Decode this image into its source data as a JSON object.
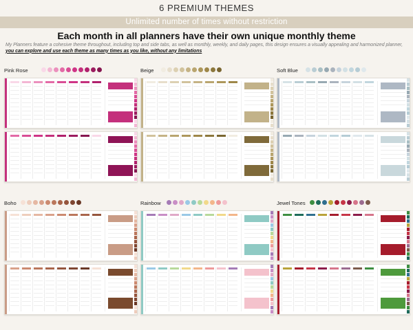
{
  "header": {
    "title": "6 PREMIUM THEMES",
    "banner": "Unlimited number of times without restriction",
    "heading": "Each month in all planners have their own unique monthly theme",
    "description": "My Planners feature a cohesive theme throughout, including top and side tabs, as well as monthly, weekly, and daily pages, this design ensures a visually appealing and harmonized planner,",
    "description_strong": "you can explore and use each theme as many times as you like, without any limitations"
  },
  "themes": [
    {
      "name": "Pink Rose",
      "accent": "#c4307c",
      "dark": "#8f1456",
      "swatches": [
        "#f9d8e8",
        "#f3b6d3",
        "#eb90bd",
        "#e36aa6",
        "#d94d95",
        "#cf3486",
        "#c4307c",
        "#b0206c",
        "#9c1c5f",
        "#861650"
      ]
    },
    {
      "name": "Beige",
      "accent": "#c2b289",
      "dark": "#7f6a3a",
      "swatches": [
        "#f1ece1",
        "#e7decb",
        "#dcd0b2",
        "#d1c29c",
        "#c5b385",
        "#b9a56f",
        "#ad975b",
        "#9e8749",
        "#8c773c",
        "#7a6631"
      ]
    },
    {
      "name": "Soft Blue",
      "accent": "#aeb8c4",
      "dark": "#c9d8dc",
      "swatches": [
        "#d6e2e6",
        "#b9cdd4",
        "#a9bfc4",
        "#97a9b2",
        "#aab3bd",
        "#c6d3dc",
        "#d2e0e4",
        "#c1d6de",
        "#b5ccd5",
        "#dfe8ec"
      ]
    },
    {
      "name": "Boho",
      "accent": "#c99c86",
      "dark": "#7a4a2e",
      "swatches": [
        "#f6e1d6",
        "#eecdbc",
        "#e5b8a3",
        "#d9a18a",
        "#cc8a70",
        "#bb775c",
        "#a9654b",
        "#95553d",
        "#7f4631",
        "#6a3826"
      ]
    },
    {
      "name": "Rainbow",
      "accent": "#8fcac4",
      "dark": "#f4c2cc",
      "swatches": [
        "#a57bb6",
        "#c98fc6",
        "#e0a9c8",
        "#9ac9e6",
        "#8fcac4",
        "#b8d99a",
        "#f1d98a",
        "#f3b68a",
        "#ee9a9a",
        "#f4c2cc"
      ]
    },
    {
      "name": "Jewel Tones",
      "accent": "#a51c2c",
      "dark": "#4e9a3c",
      "swatches": [
        "#3e8e41",
        "#1e6b5a",
        "#2f6f8f",
        "#b9a33a",
        "#a51c2c",
        "#c63547",
        "#8c1c4a",
        "#d6758b",
        "#9b6b8f",
        "#7c5a4b"
      ]
    }
  ]
}
